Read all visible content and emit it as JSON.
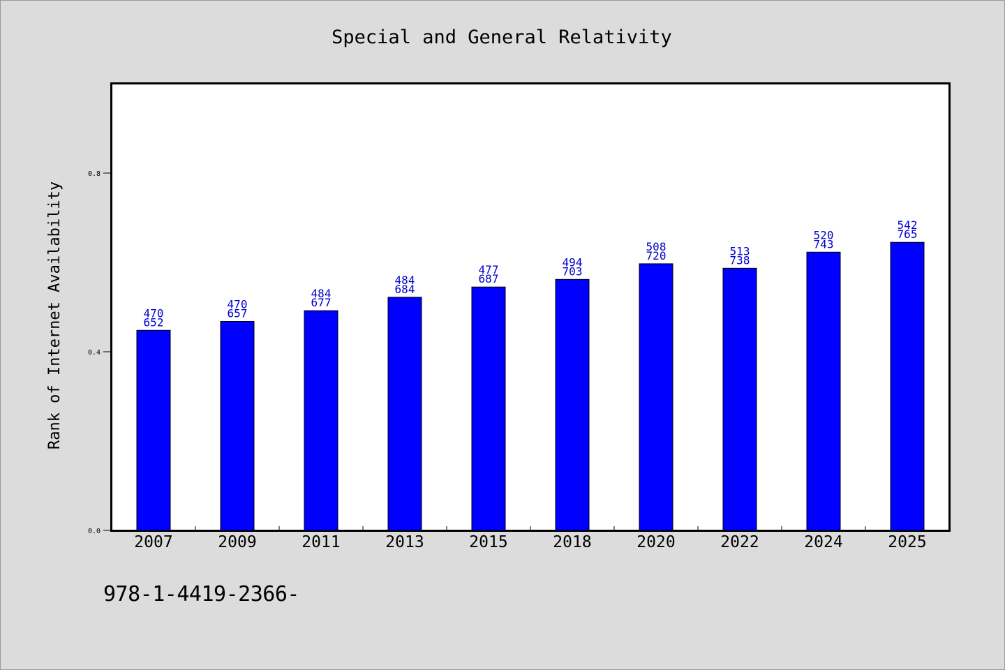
{
  "chart_data": {
    "type": "bar",
    "title": "Special and General Relativity",
    "xlabel": "",
    "ylabel": "Rank of Internet Availability",
    "categories": [
      "2007",
      "2009",
      "2011",
      "2013",
      "2015",
      "2018",
      "2020",
      "2022",
      "2024",
      "2025"
    ],
    "values": [
      0.448,
      0.468,
      0.492,
      0.522,
      0.545,
      0.562,
      0.597,
      0.587,
      0.623,
      0.645
    ],
    "bar_labels_top": [
      "470",
      "470",
      "484",
      "484",
      "477",
      "494",
      "508",
      "513",
      "520",
      "542"
    ],
    "bar_labels_bottom": [
      "652",
      "657",
      "677",
      "684",
      "687",
      "703",
      "720",
      "738",
      "743",
      "765"
    ],
    "ylim": [
      0,
      1.0
    ],
    "yticks": [
      0.0,
      0.4,
      0.8
    ],
    "ytick_labels": [
      "0.0",
      "0.4",
      "0.8"
    ],
    "grid": false,
    "colors": {
      "bar": "#0000ff",
      "bar_label": "#0000cc",
      "background": "#dcdcdc",
      "plot_background": "#ffffff"
    }
  },
  "footer": {
    "isbn": "978-1-4419-2366-"
  }
}
